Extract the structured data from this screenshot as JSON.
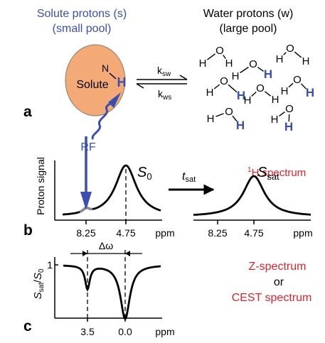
{
  "panel_a": {
    "letter": "a",
    "solute_title_line1": "Solute protons (s)",
    "solute_title_line2": "(small pool)",
    "water_title_line1": "Water protons (w)",
    "water_title_line2": "(large pool)",
    "solute_label": "Solute",
    "n_label": "N",
    "h_label": "H",
    "k_sw_main": "k",
    "k_sw_sub": "sw",
    "k_ws_main": "k",
    "k_ws_sub": "ws",
    "rf_label": "RF",
    "water_atoms": {
      "oxygen": "O",
      "hydrogen": "H"
    }
  },
  "panel_b": {
    "letter": "b",
    "ylabel": "Proton signal",
    "spectrum_title_sup": "1",
    "spectrum_title": "H spectrum",
    "s0_main": "S",
    "s0_sub": "0",
    "ssat_main": "S",
    "ssat_sub": "sat",
    "tsat_main": "t",
    "tsat_sub": "sat",
    "left_ticks": [
      "8.25",
      "4.75"
    ],
    "left_unit": "ppm",
    "right_ticks": [
      "8.25",
      "4.75"
    ],
    "right_unit": "ppm"
  },
  "panel_c": {
    "letter": "c",
    "ylabel_main1": "S",
    "ylabel_sub1": "sat",
    "ylabel_slash": "/",
    "ylabel_main2": "S",
    "ylabel_sub2": "0",
    "y_tick": "1",
    "delta_label": "Δω",
    "x_ticks": [
      "3.5",
      "0.0"
    ],
    "x_unit": "ppm",
    "zspec_label": "Z-spectrum",
    "or_label": "or",
    "cest_label": "CEST spectrum"
  },
  "colors": {
    "blue": "#3a4fb0",
    "red": "#e0222a",
    "ellipse_fill": "#f3aa77",
    "ellipse_stroke": "#8a7a6a",
    "gray": "#8a8a8a",
    "black": "#000000"
  }
}
